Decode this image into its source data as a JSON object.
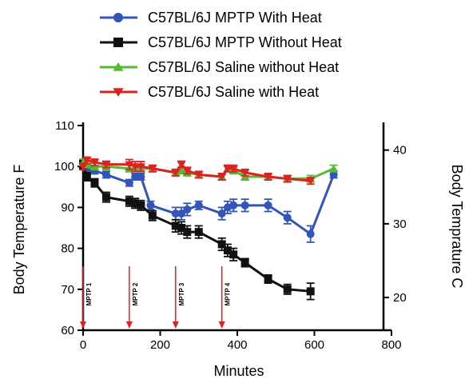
{
  "chart_data": {
    "type": "line",
    "title": "",
    "xlabel": "Minutes",
    "ylabel": "Body Temperature F",
    "y2label": "Body Temprature C",
    "xlim": [
      0,
      800
    ],
    "ylim": [
      60,
      110
    ],
    "y2lim": [
      15.56,
      43.33
    ],
    "x_ticks": [
      "0",
      "200",
      "400",
      "600",
      "800"
    ],
    "y_ticks": [
      "60",
      "70",
      "80",
      "90",
      "100",
      "110"
    ],
    "y2_ticks": [
      "20",
      "30",
      "40"
    ],
    "y2_tick_values": [
      20,
      30,
      40
    ],
    "grid": false,
    "legend_position": "top-center",
    "series": [
      {
        "name": "C57BL/6J MPTP With Heat",
        "color": "#3355bb",
        "marker": "circle",
        "x": [
          0,
          10,
          30,
          60,
          120,
          135,
          150,
          175,
          240,
          255,
          270,
          300,
          360,
          375,
          390,
          420,
          480,
          530,
          590,
          650
        ],
        "y": [
          100.5,
          99.0,
          99.0,
          98.0,
          96.0,
          97.5,
          97.5,
          90.5,
          88.5,
          88.5,
          89.5,
          90.5,
          88.5,
          90.0,
          90.5,
          90.5,
          90.5,
          87.5,
          83.5,
          98.0
        ],
        "err": [
          1.0,
          0.8,
          0.8,
          0.8,
          0.8,
          0.8,
          0.8,
          1.0,
          1.5,
          1.5,
          1.5,
          1.0,
          1.5,
          1.5,
          1.5,
          1.5,
          1.5,
          1.5,
          2.0,
          0.8
        ]
      },
      {
        "name": "C57BL/6J MPTP Without Heat",
        "color": "#111111",
        "marker": "square",
        "x": [
          0,
          10,
          30,
          60,
          120,
          135,
          150,
          180,
          240,
          255,
          270,
          300,
          360,
          375,
          390,
          420,
          480,
          530,
          590
        ],
        "y": [
          100.5,
          97.5,
          96.0,
          92.5,
          91.5,
          91.0,
          90.5,
          88.0,
          85.5,
          85.0,
          84.0,
          84.0,
          81.0,
          79.5,
          78.5,
          76.5,
          72.5,
          70.0,
          69.5
        ],
        "err": [
          1.0,
          1.0,
          1.0,
          1.2,
          1.2,
          1.2,
          1.2,
          1.2,
          1.5,
          1.5,
          1.5,
          1.5,
          1.5,
          1.5,
          1.5,
          1.0,
          1.0,
          1.2,
          2.0
        ]
      },
      {
        "name": "C57BL/6J Saline without Heat",
        "color": "#55bb33",
        "marker": "triangle-up",
        "x": [
          0,
          10,
          30,
          60,
          120,
          135,
          150,
          180,
          240,
          255,
          270,
          300,
          360,
          375,
          390,
          420,
          480,
          530,
          590,
          650
        ],
        "y": [
          101.0,
          100.5,
          100.0,
          100.0,
          99.5,
          99.5,
          99.5,
          99.5,
          98.5,
          99.0,
          98.5,
          98.0,
          97.5,
          99.5,
          99.0,
          97.5,
          97.5,
          97.0,
          97.0,
          99.5
        ],
        "err": [
          0.8,
          0.8,
          0.8,
          0.8,
          0.8,
          0.8,
          0.8,
          0.8,
          0.8,
          0.8,
          0.8,
          0.8,
          0.8,
          0.8,
          0.8,
          0.8,
          0.8,
          0.8,
          0.8,
          0.8
        ]
      },
      {
        "name": "C57BL/6J Saline with Heat",
        "color": "#dd2222",
        "marker": "triangle-down",
        "x": [
          0,
          10,
          30,
          60,
          120,
          135,
          150,
          180,
          240,
          255,
          270,
          300,
          360,
          375,
          390,
          420,
          480,
          530,
          590
        ],
        "y": [
          100.0,
          101.5,
          101.0,
          100.5,
          100.5,
          100.0,
          100.0,
          99.5,
          98.5,
          100.5,
          99.0,
          98.0,
          97.5,
          99.5,
          99.5,
          98.5,
          97.5,
          97.0,
          96.5
        ],
        "err": [
          0.8,
          0.8,
          0.8,
          0.8,
          1.2,
          1.2,
          1.2,
          0.8,
          0.8,
          0.8,
          0.8,
          0.8,
          0.8,
          0.8,
          0.8,
          0.8,
          0.8,
          0.8,
          0.8
        ]
      }
    ],
    "annotations": [
      {
        "label": "MPTP 1",
        "x": 0,
        "color": "#dd2222"
      },
      {
        "label": "MPTP 2",
        "x": 120,
        "color": "#dd2222"
      },
      {
        "label": "MPTP 3",
        "x": 240,
        "color": "#dd2222"
      },
      {
        "label": "MPTP 4",
        "x": 360,
        "color": "#dd2222"
      }
    ]
  }
}
